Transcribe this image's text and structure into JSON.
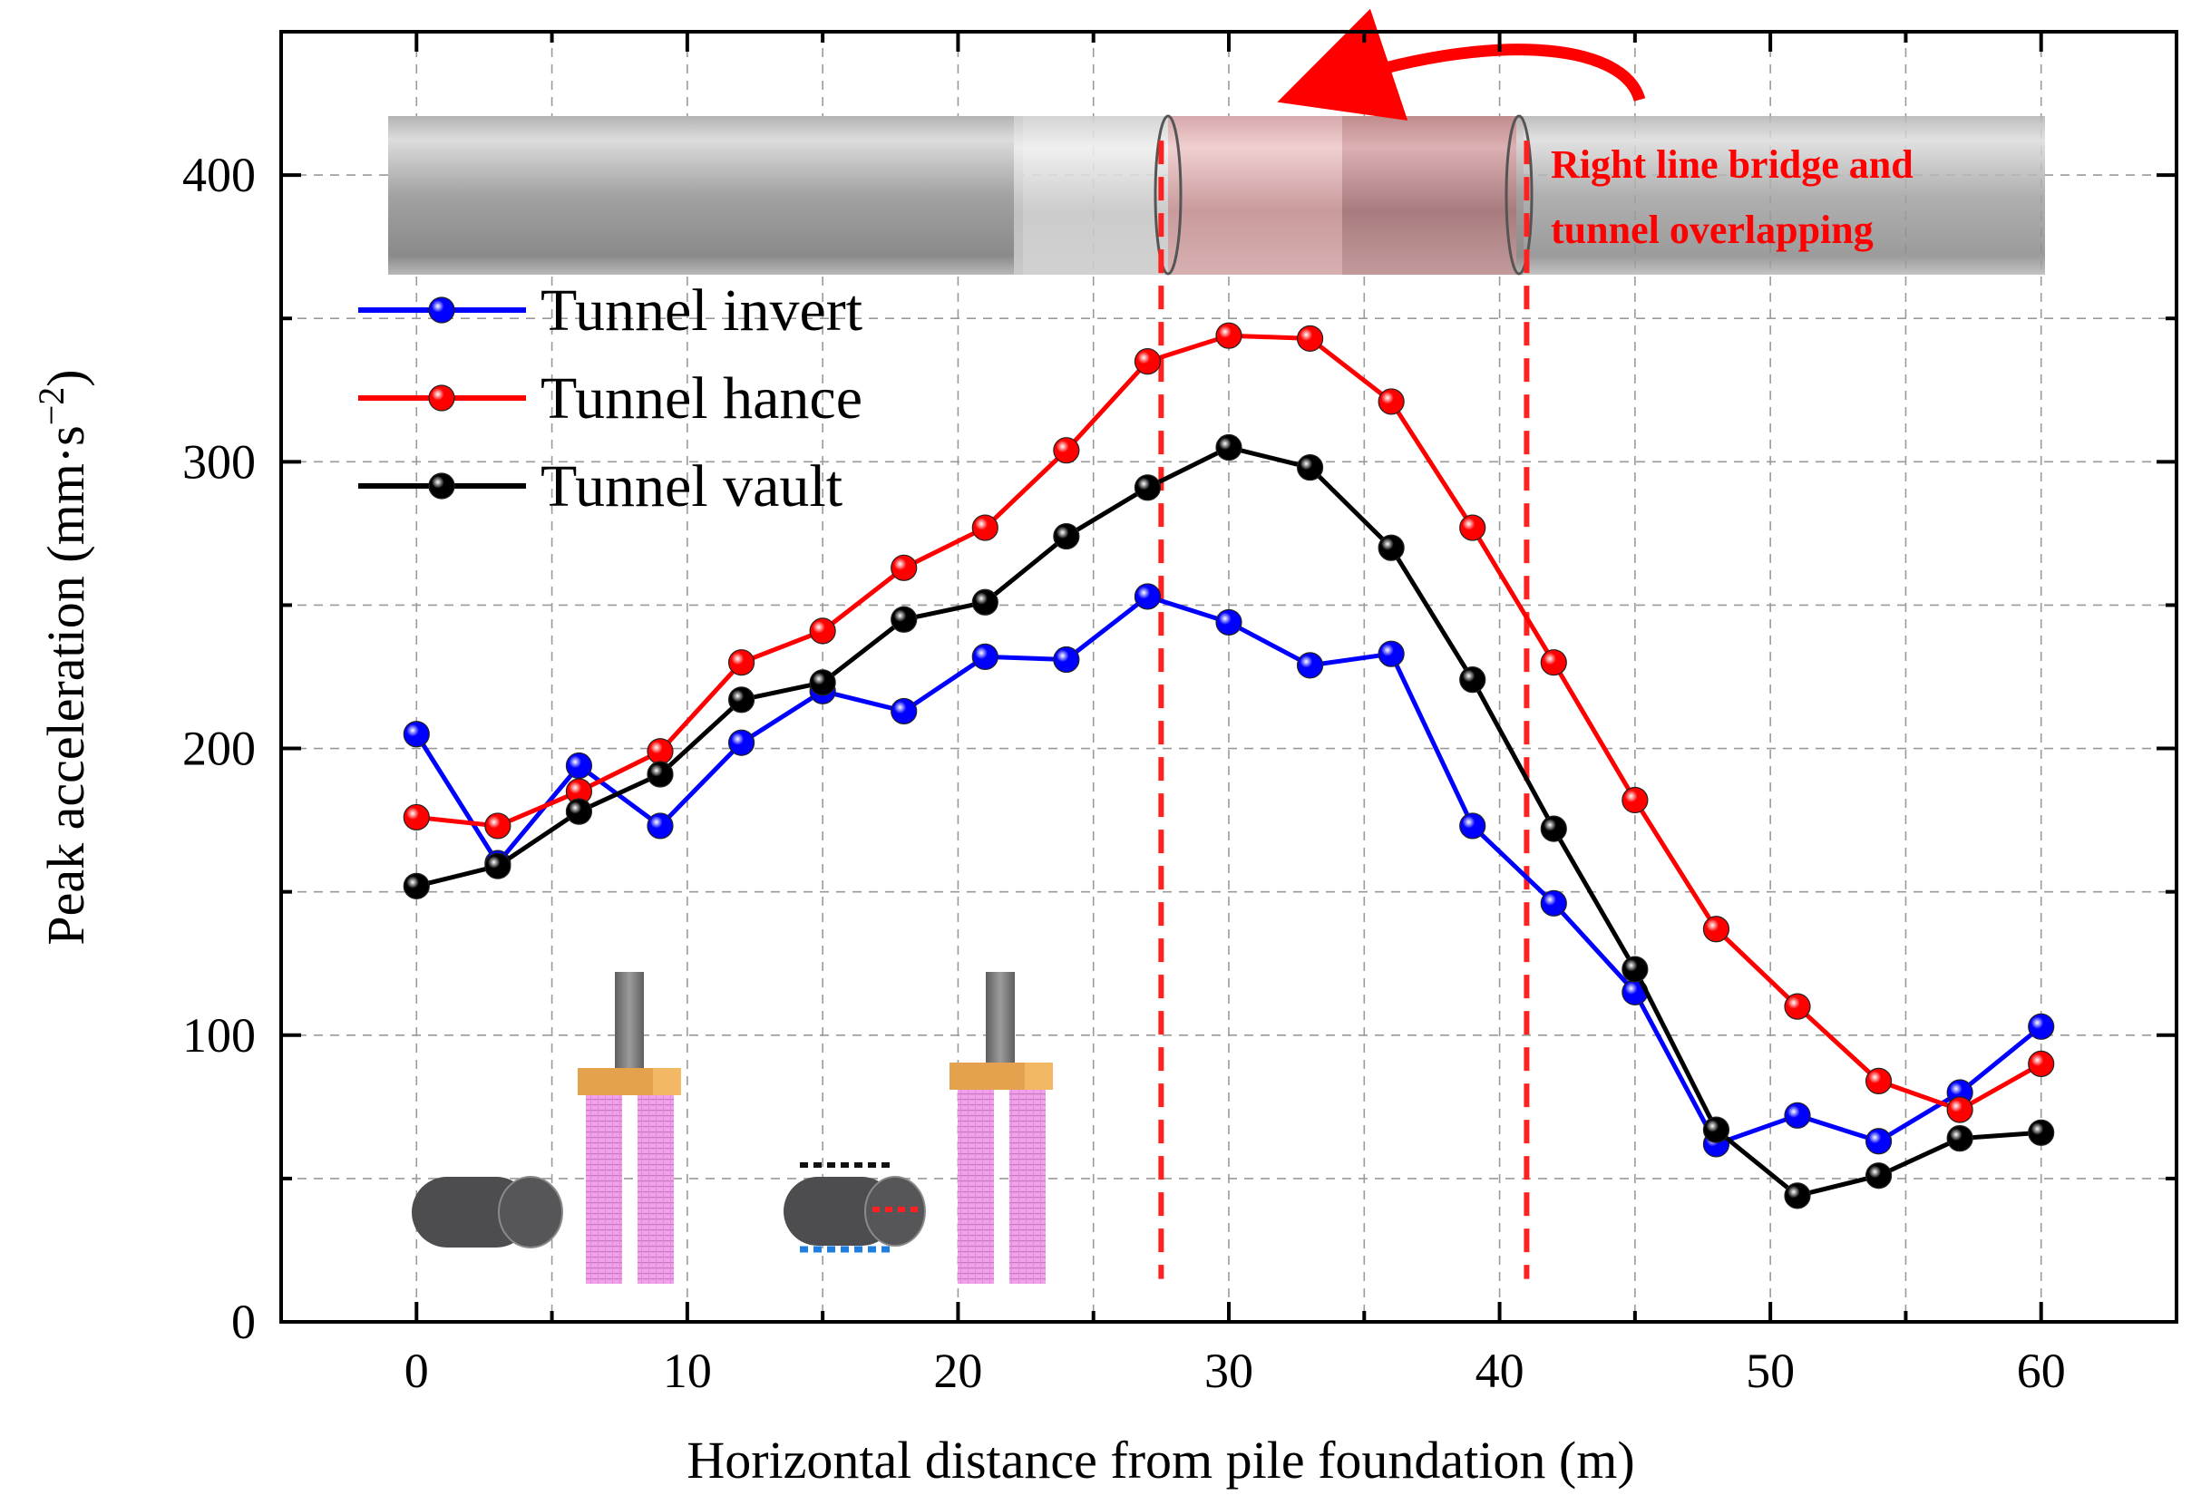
{
  "chart_data": {
    "type": "line",
    "title": "",
    "xlabel": "Horizontal distance from pile foundation (m)",
    "ylabel": "Peak acceleration (mm·s⁻²)",
    "ylabel_main": "Peak acceleration (mm·s",
    "ylabel_sup": "−2",
    "ylabel_end": ")",
    "xlim": [
      -5,
      65
    ],
    "ylim": [
      0,
      450
    ],
    "xticks": [
      0,
      10,
      20,
      30,
      40,
      50,
      60
    ],
    "yticks": [
      0,
      100,
      200,
      300,
      400
    ],
    "grid": true,
    "legend_position": "upper-left",
    "x": [
      0,
      3,
      6,
      9,
      12,
      15,
      18,
      21,
      24,
      27,
      30,
      33,
      36,
      39,
      42,
      45,
      48,
      51,
      54,
      57,
      60
    ],
    "series": [
      {
        "name": "Tunnel invert",
        "color": "#0000ff",
        "values": [
          205,
          160,
          194,
          173,
          202,
          220,
          213,
          232,
          231,
          253,
          244,
          229,
          233,
          173,
          146,
          115,
          62,
          72,
          63,
          80,
          103
        ]
      },
      {
        "name": "Tunnel hance",
        "color": "#ff0000",
        "values": [
          176,
          173,
          185,
          199,
          230,
          241,
          263,
          277,
          304,
          335,
          344,
          343,
          321,
          277,
          230,
          182,
          137,
          110,
          84,
          74,
          90
        ]
      },
      {
        "name": "Tunnel vault",
        "color": "#000000",
        "values": [
          152,
          159,
          178,
          191,
          217,
          223,
          245,
          251,
          274,
          291,
          305,
          298,
          270,
          224,
          172,
          123,
          67,
          44,
          51,
          64,
          66
        ]
      }
    ],
    "reference_lines": {
      "color": "#ff2020",
      "x": [
        27.5,
        41
      ]
    },
    "annotation": {
      "line1": "Right line bridge and",
      "line2": "tunnel overlapping",
      "color": "#ff0000"
    }
  },
  "colors": {
    "tunnel_gray": "#8e8e8e",
    "overlap_pink": "#c99a9c",
    "pile_pink": "#f3a0ec",
    "cap_orange": "#e4a24f",
    "pier_gray": "#7d7d7d",
    "tunnel_icon": "#4d4d4f"
  }
}
